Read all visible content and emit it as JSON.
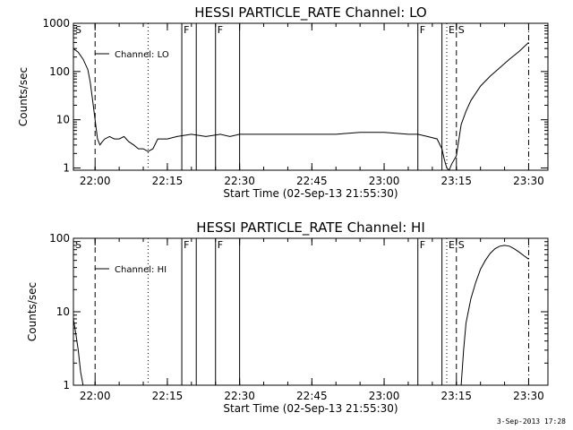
{
  "chart_data": [
    {
      "type": "line",
      "title": "HESSI PARTICLE_RATE Channel: LO",
      "xlabel": "Start Time (02-Sep-13 21:55:30)",
      "ylabel": "Counts/sec",
      "y_scale": "log",
      "ylim": [
        0.9,
        1000
      ],
      "xlim_minutes_from_start": [
        0,
        98.5
      ],
      "x_tick_labels": [
        "22:00",
        "22:15",
        "22:30",
        "22:45",
        "23:00",
        "23:15",
        "23:30"
      ],
      "y_tick_labels": [
        "1",
        "10",
        "100",
        "1000"
      ],
      "legend": "Channel: LO",
      "legend_position": "top-left",
      "event_markers": [
        {
          "label": "S",
          "time": "21:55:30",
          "style": "solid"
        },
        {
          "label": "",
          "time": "22:00",
          "style": "dashed"
        },
        {
          "label": "",
          "time": "22:11",
          "style": "dotted"
        },
        {
          "label": "F",
          "time": "22:18",
          "style": "solid"
        },
        {
          "label": "",
          "time": "22:21",
          "style": "solid"
        },
        {
          "label": "F",
          "time": "22:25",
          "style": "solid"
        },
        {
          "label": "",
          "time": "22:30",
          "style": "solid"
        },
        {
          "label": "F",
          "time": "23:07",
          "style": "solid"
        },
        {
          "label": "",
          "time": "23:12",
          "style": "solid"
        },
        {
          "label": "E",
          "time": "23:13",
          "style": "dotted"
        },
        {
          "label": "S",
          "time": "23:15",
          "style": "dashed"
        },
        {
          "label": "",
          "time": "23:30",
          "style": "dashdot"
        }
      ],
      "series": [
        {
          "x": [
            "21:55:30",
            "21:56:30",
            "21:57:30",
            "21:58:30",
            "21:59:00",
            "21:59:30",
            "22:00",
            "22:00:30",
            "22:01",
            "22:01:30",
            "22:02",
            "22:03",
            "22:04",
            "22:05",
            "22:06",
            "22:07",
            "22:08",
            "22:09",
            "22:10",
            "22:11",
            "22:12",
            "22:13",
            "22:15",
            "22:17",
            "22:20",
            "22:23",
            "22:26",
            "22:28",
            "22:30",
            "22:35",
            "22:40",
            "22:45",
            "22:50",
            "22:55",
            "23:00",
            "23:05",
            "23:07",
            "23:09",
            "23:11",
            "23:12",
            "23:12:30",
            "23:13",
            "23:13:30",
            "23:14",
            "23:15",
            "23:16",
            "23:17",
            "23:18",
            "23:20",
            "23:22",
            "23:24",
            "23:26",
            "23:28",
            "23:30"
          ],
          "y": [
            300,
            250,
            180,
            110,
            60,
            25,
            10,
            4,
            3,
            3.5,
            4,
            4.5,
            4,
            4,
            4.5,
            3.5,
            3,
            2.5,
            2.5,
            2.2,
            2.5,
            4,
            4,
            4.5,
            5,
            4.5,
            5,
            4.5,
            5,
            5,
            5,
            5,
            5,
            5.5,
            5.5,
            5,
            5,
            4.5,
            4,
            2.5,
            1.5,
            1,
            0.9,
            1.2,
            1.8,
            8,
            15,
            25,
            50,
            80,
            120,
            180,
            260,
            400
          ]
        }
      ]
    },
    {
      "type": "line",
      "title": "HESSI PARTICLE_RATE Channel: HI",
      "xlabel": "Start Time (02-Sep-13 21:55:30)",
      "ylabel": "Counts/sec",
      "y_scale": "log",
      "ylim": [
        1,
        100
      ],
      "xlim_minutes_from_start": [
        0,
        98.5
      ],
      "x_tick_labels": [
        "22:00",
        "22:15",
        "22:30",
        "22:45",
        "23:00",
        "23:15",
        "23:30"
      ],
      "y_tick_labels": [
        "1",
        "10",
        "100"
      ],
      "legend": "Channel: HI",
      "legend_position": "top-left",
      "event_markers": [
        {
          "label": "S",
          "time": "21:55:30",
          "style": "solid"
        },
        {
          "label": "",
          "time": "22:00",
          "style": "dashed"
        },
        {
          "label": "",
          "time": "22:11",
          "style": "dotted"
        },
        {
          "label": "F",
          "time": "22:18",
          "style": "solid"
        },
        {
          "label": "",
          "time": "22:21",
          "style": "solid"
        },
        {
          "label": "F",
          "time": "22:25",
          "style": "solid"
        },
        {
          "label": "",
          "time": "22:30",
          "style": "solid"
        },
        {
          "label": "F",
          "time": "23:07",
          "style": "solid"
        },
        {
          "label": "",
          "time": "23:12",
          "style": "solid"
        },
        {
          "label": "E",
          "time": "23:13",
          "style": "dotted"
        },
        {
          "label": "S",
          "time": "23:15",
          "style": "dashed"
        },
        {
          "label": "",
          "time": "23:30",
          "style": "dashdot"
        }
      ],
      "series": [
        {
          "x": [
            "21:55:30",
            "21:56",
            "21:56:30",
            "21:57",
            "21:57:30",
            "23:16",
            "23:16:30",
            "23:17",
            "23:18",
            "23:19",
            "23:20",
            "23:21",
            "23:22",
            "23:23",
            "23:24",
            "23:25",
            "23:26",
            "23:27",
            "23:28",
            "23:29",
            "23:30"
          ],
          "y": [
            8,
            5,
            3,
            1.5,
            1,
            1,
            3,
            7,
            15,
            25,
            38,
            50,
            62,
            72,
            78,
            80,
            78,
            72,
            65,
            58,
            52
          ]
        }
      ]
    }
  ],
  "footer_timestamp": "3-Sep-2013 17:28"
}
